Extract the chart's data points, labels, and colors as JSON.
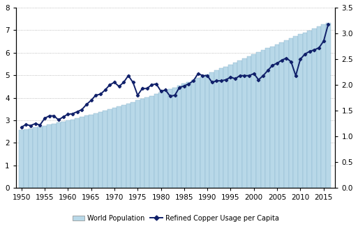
{
  "years": [
    1950,
    1951,
    1952,
    1953,
    1954,
    1955,
    1956,
    1957,
    1958,
    1959,
    1960,
    1961,
    1962,
    1963,
    1964,
    1965,
    1966,
    1967,
    1968,
    1969,
    1970,
    1971,
    1972,
    1973,
    1974,
    1975,
    1976,
    1977,
    1978,
    1979,
    1980,
    1981,
    1982,
    1983,
    1984,
    1985,
    1986,
    1987,
    1988,
    1989,
    1990,
    1991,
    1992,
    1993,
    1994,
    1995,
    1996,
    1997,
    1998,
    1999,
    2000,
    2001,
    2002,
    2003,
    2004,
    2005,
    2006,
    2007,
    2008,
    2009,
    2010,
    2011,
    2012,
    2013,
    2014,
    2015,
    2016
  ],
  "population": [
    2.556,
    2.595,
    2.636,
    2.677,
    2.719,
    2.762,
    2.806,
    2.851,
    2.898,
    2.945,
    2.994,
    3.044,
    3.095,
    3.148,
    3.202,
    3.258,
    3.314,
    3.372,
    3.432,
    3.493,
    3.555,
    3.618,
    3.682,
    3.748,
    3.814,
    3.881,
    3.95,
    4.02,
    4.091,
    4.163,
    4.236,
    4.311,
    4.387,
    4.464,
    4.543,
    4.622,
    4.703,
    4.785,
    4.869,
    4.954,
    5.04,
    5.126,
    5.214,
    5.302,
    5.39,
    5.479,
    5.569,
    5.659,
    5.749,
    5.84,
    5.93,
    6.019,
    6.108,
    6.197,
    6.285,
    6.373,
    6.461,
    6.549,
    6.637,
    6.724,
    6.811,
    6.897,
    6.984,
    7.07,
    7.157,
    7.244,
    7.33
  ],
  "copper_per_capita": [
    1.18,
    1.23,
    1.21,
    1.25,
    1.22,
    1.35,
    1.4,
    1.4,
    1.32,
    1.38,
    1.43,
    1.44,
    1.48,
    1.52,
    1.62,
    1.7,
    1.8,
    1.82,
    1.9,
    2.0,
    2.05,
    1.97,
    2.05,
    2.18,
    2.05,
    1.8,
    1.93,
    1.93,
    2.0,
    2.02,
    1.88,
    1.9,
    1.78,
    1.8,
    1.95,
    1.98,
    2.02,
    2.08,
    2.22,
    2.18,
    2.18,
    2.05,
    2.08,
    2.08,
    2.1,
    2.15,
    2.12,
    2.18,
    2.18,
    2.18,
    2.22,
    2.1,
    2.18,
    2.28,
    2.38,
    2.42,
    2.48,
    2.52,
    2.45,
    2.18,
    2.5,
    2.6,
    2.65,
    2.68,
    2.72,
    2.85,
    3.18
  ],
  "bar_color": "#b8d8e8",
  "bar_edge_color": "#8ab4cc",
  "line_color": "#10206a",
  "left_ylim": [
    0,
    8
  ],
  "right_ylim": [
    0.0,
    3.5
  ],
  "left_yticks": [
    0,
    1,
    2,
    3,
    4,
    5,
    6,
    7,
    8
  ],
  "right_yticks": [
    0.0,
    0.5,
    1.0,
    1.5,
    2.0,
    2.5,
    3.0,
    3.5
  ],
  "xticks": [
    1950,
    1955,
    1960,
    1965,
    1970,
    1975,
    1980,
    1985,
    1990,
    1995,
    2000,
    2005,
    2010,
    2015
  ],
  "legend_bar_label": "World Population",
  "legend_line_label": "Refined Copper Usage per Capita",
  "grid_color": "#aaaaaa",
  "title": ""
}
